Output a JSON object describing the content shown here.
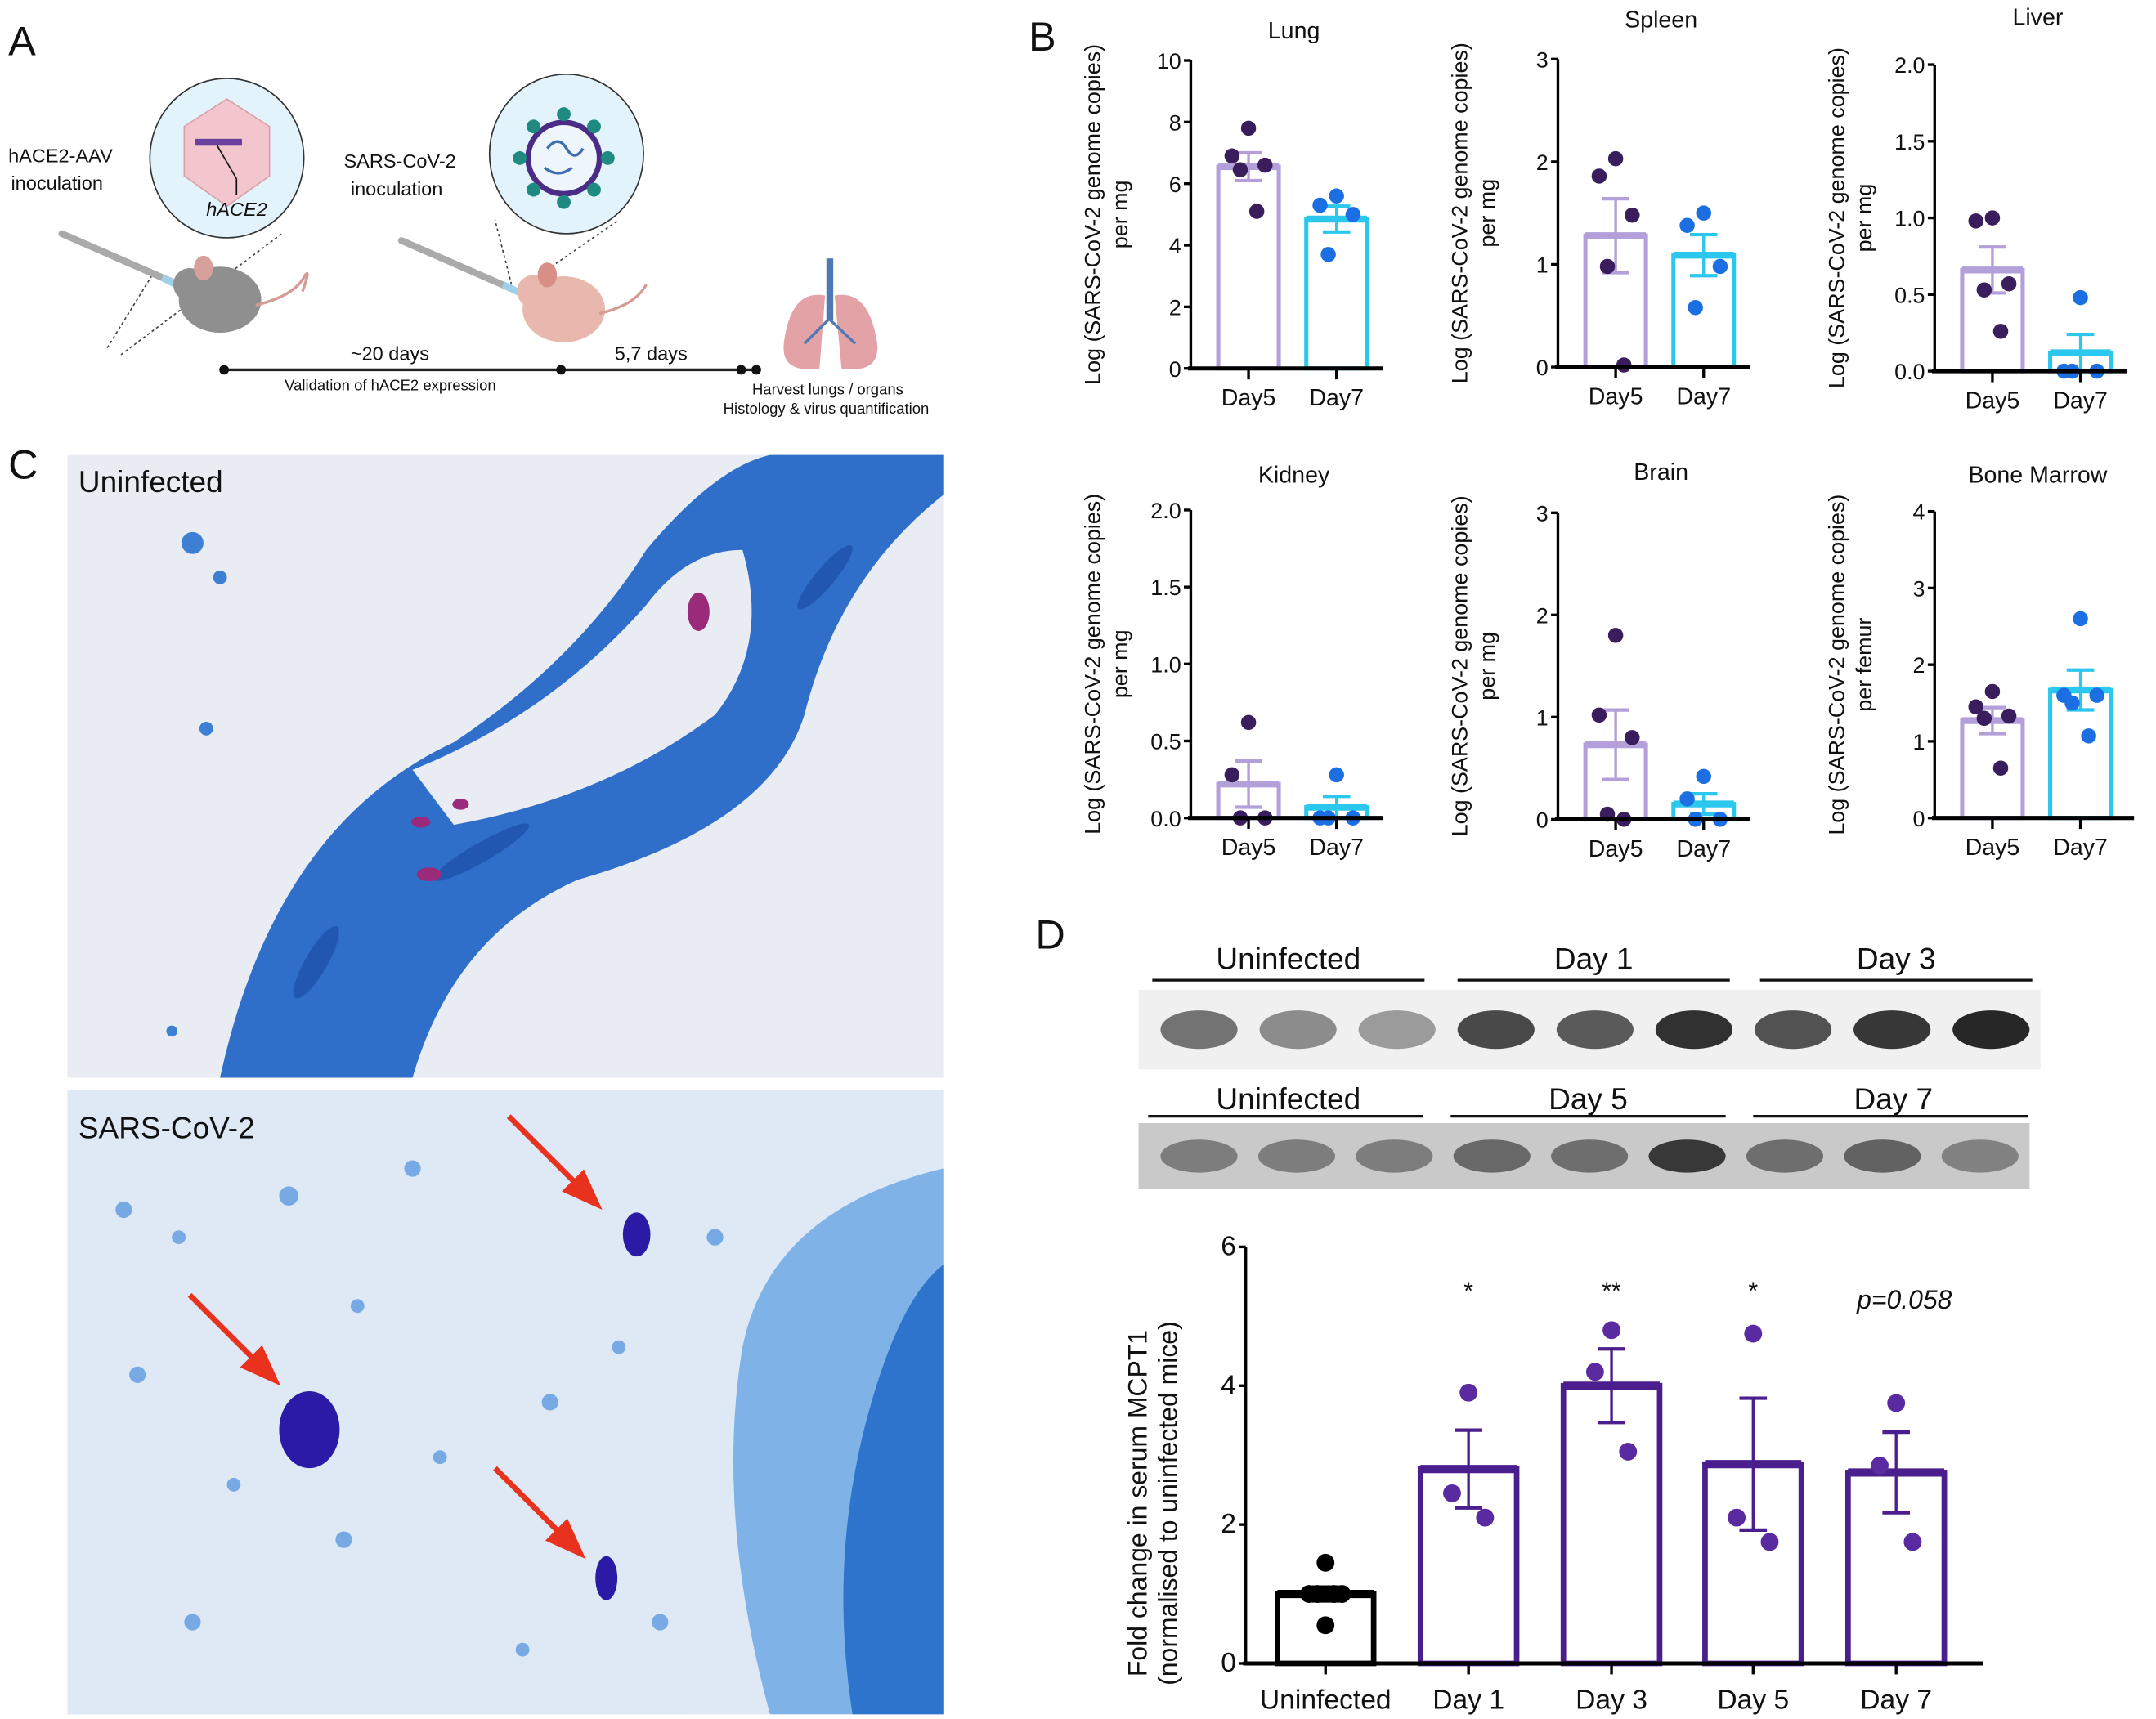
{
  "panel_labels": {
    "a": "A",
    "b": "B",
    "c": "C",
    "d": "D"
  },
  "panel_a": {
    "aav_line1": "hACE2-AAV",
    "aav_line2": "inoculation",
    "gene_label": "hACE2",
    "virus_line1": "SARS-CoV-2",
    "virus_line2": "inoculation",
    "interval1": "~20 days",
    "interval2": "5,7 days",
    "interval1_note": "Validation of hACE2 expression",
    "harvest_line1": "Harvest lungs / organs",
    "harvest_line2": "Histology & virus quantification",
    "icons": [
      "syringe-icon",
      "aav-capsid-icon",
      "mouse-icon",
      "virus-icon",
      "lungs-icon"
    ]
  },
  "panel_c": {
    "top_label": "Uninfected",
    "bottom_label": "SARS-CoV-2",
    "stain_color": "#2f6fc9",
    "arrow_color": "#e8321e"
  },
  "panel_d_blot": {
    "row1": {
      "groups": [
        "Uninfected",
        "Day 1",
        "Day 3"
      ],
      "band_intensity": [
        0.55,
        0.4,
        0.3,
        0.8,
        0.7,
        0.95,
        0.75,
        0.9,
        1.0
      ]
    },
    "row2": {
      "groups": [
        "Uninfected",
        "Day 5",
        "Day 7"
      ],
      "band_intensity": [
        0.35,
        0.35,
        0.35,
        0.5,
        0.45,
        0.85,
        0.45,
        0.55,
        0.3
      ]
    }
  },
  "colors": {
    "day5_bar": "#b39fd9",
    "day5_point": "#3a1d5c",
    "day7_bar": "#2cc7ec",
    "day7_point": "#1c6fe3",
    "mcpt1_bar": "#4a1e8c",
    "mcpt1_point": "#5a2aa0",
    "uninfected": "#000000"
  },
  "chart_data": [
    {
      "id": "lung",
      "type": "bar",
      "title": "Lung",
      "ylabel": [
        "Log (SARS-CoV-2 genome copies)",
        "per mg"
      ],
      "ylim": [
        0,
        10
      ],
      "yticks": [
        "0",
        "2",
        "4",
        "6",
        "8",
        "10"
      ],
      "ytick_values": [
        0,
        2,
        4,
        6,
        8,
        10
      ],
      "grid": false,
      "categories": [
        "Day5",
        "Day7"
      ],
      "series": [
        {
          "mean": 6.55,
          "sem": 0.45,
          "points": [
            7.8,
            6.9,
            6.6,
            6.45,
            5.1
          ]
        },
        {
          "mean": 4.85,
          "sem": 0.42,
          "points": [
            5.6,
            5.3,
            5.0,
            3.7
          ]
        }
      ]
    },
    {
      "id": "spleen",
      "type": "bar",
      "title": "Spleen",
      "ylabel": [
        "Log (SARS-CoV-2 genome copies)",
        "per mg"
      ],
      "ylim": [
        0,
        3
      ],
      "yticks": [
        "0",
        "1",
        "2",
        "3"
      ],
      "ytick_values": [
        0,
        1,
        2,
        3
      ],
      "grid": false,
      "categories": [
        "Day5",
        "Day7"
      ],
      "series": [
        {
          "mean": 1.28,
          "sem": 0.36,
          "points": [
            2.03,
            1.86,
            1.48,
            0.98,
            0.02
          ]
        },
        {
          "mean": 1.09,
          "sem": 0.2,
          "points": [
            1.5,
            1.38,
            0.98,
            0.58
          ]
        }
      ]
    },
    {
      "id": "liver",
      "type": "bar",
      "title": "Liver",
      "ylabel": [
        "Log (SARS-CoV-2 genome copies)",
        "per mg"
      ],
      "ylim": [
        0,
        2
      ],
      "yticks": [
        "0.0",
        "0.5",
        "1.0",
        "1.5",
        "2.0"
      ],
      "ytick_values": [
        0,
        0.5,
        1,
        1.5,
        2
      ],
      "grid": false,
      "categories": [
        "Day5",
        "Day7"
      ],
      "series": [
        {
          "mean": 0.66,
          "sem": 0.15,
          "points": [
            1.0,
            0.98,
            0.57,
            0.53,
            0.26
          ]
        },
        {
          "mean": 0.12,
          "sem": 0.12,
          "points": [
            0.48,
            0,
            0,
            0
          ]
        }
      ]
    },
    {
      "id": "kidney",
      "type": "bar",
      "title": "Kidney",
      "ylabel": [
        "Log (SARS-CoV-2 genome copies)",
        "per mg"
      ],
      "ylim": [
        0,
        2
      ],
      "yticks": [
        "0.0",
        "0.5",
        "1.0",
        "1.5",
        "2.0"
      ],
      "ytick_values": [
        0,
        0.5,
        1,
        1.5,
        2
      ],
      "grid": false,
      "categories": [
        "Day5",
        "Day7"
      ],
      "series": [
        {
          "mean": 0.22,
          "sem": 0.15,
          "points": [
            0.62,
            0.28,
            0,
            0
          ]
        },
        {
          "mean": 0.07,
          "sem": 0.07,
          "points": [
            0.28,
            0,
            0,
            0
          ]
        }
      ]
    },
    {
      "id": "brain",
      "type": "bar",
      "title": "Brain",
      "ylabel": [
        "Log (SARS-CoV-2 genome copies)",
        "per mg"
      ],
      "ylim": [
        0,
        3
      ],
      "yticks": [
        "0",
        "1",
        "2",
        "3"
      ],
      "ytick_values": [
        0,
        1,
        2,
        3
      ],
      "grid": false,
      "categories": [
        "Day5",
        "Day7"
      ],
      "series": [
        {
          "mean": 0.73,
          "sem": 0.34,
          "points": [
            1.8,
            1.02,
            0.8,
            0.05,
            0
          ]
        },
        {
          "mean": 0.15,
          "sem": 0.1,
          "points": [
            0.42,
            0.2,
            0,
            0
          ]
        }
      ]
    },
    {
      "id": "bone-marrow",
      "type": "bar",
      "title": "Bone Marrow",
      "ylabel": [
        "Log (SARS-CoV-2 genome copies)",
        "per femur"
      ],
      "ylim": [
        0,
        4
      ],
      "yticks": [
        "0",
        "1",
        "2",
        "3",
        "4"
      ],
      "ytick_values": [
        0,
        1,
        2,
        3,
        4
      ],
      "grid": false,
      "categories": [
        "Day5",
        "Day7"
      ],
      "series": [
        {
          "mean": 1.27,
          "sem": 0.17,
          "points": [
            1.65,
            1.45,
            1.33,
            1.3,
            0.65
          ]
        },
        {
          "mean": 1.67,
          "sem": 0.26,
          "points": [
            2.6,
            1.6,
            1.6,
            1.5,
            1.07
          ]
        }
      ]
    },
    {
      "id": "mcpt1",
      "type": "bar",
      "title": "",
      "ylabel": [
        "Fold change in serum MCPT1",
        "(normalised to uninfected mice)"
      ],
      "ylim": [
        0,
        6
      ],
      "yticks": [
        "0",
        "2",
        "4",
        "6"
      ],
      "ytick_values": [
        0,
        2,
        4,
        6
      ],
      "grid": false,
      "categories": [
        "Uninfected",
        "Day 1",
        "Day 3",
        "Day 5",
        "Day 7"
      ],
      "series": [
        {
          "mean": 1.0,
          "sem": 0.1,
          "points": [
            1.45,
            1.0,
            1.0,
            1.0,
            1.0,
            0.55
          ]
        },
        {
          "mean": 2.8,
          "sem": 0.56,
          "points": [
            3.9,
            2.45,
            2.1
          ]
        },
        {
          "mean": 4.0,
          "sem": 0.53,
          "points": [
            4.8,
            4.2,
            3.05
          ]
        },
        {
          "mean": 2.87,
          "sem": 0.95,
          "points": [
            4.75,
            2.1,
            1.75
          ]
        },
        {
          "mean": 2.75,
          "sem": 0.58,
          "points": [
            3.75,
            2.85,
            1.75
          ]
        }
      ],
      "annotations": [
        "",
        "*",
        "**",
        "*",
        "p=0.058"
      ]
    }
  ]
}
